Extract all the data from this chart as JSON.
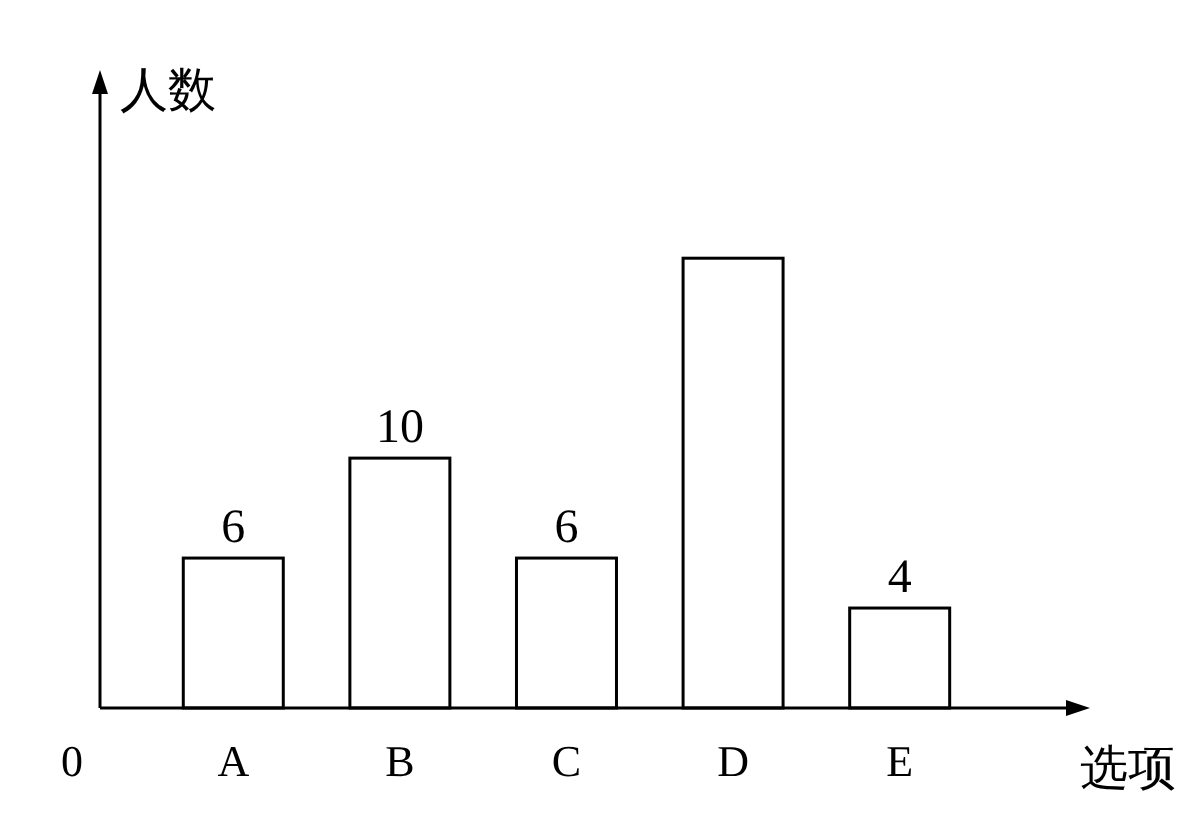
{
  "chart_data": {
    "type": "bar",
    "xlabel": "选项",
    "ylabel": "人数",
    "categories": [
      "A",
      "B",
      "C",
      "D",
      "E"
    ],
    "values": [
      6,
      10,
      6,
      18,
      4
    ],
    "value_labels": [
      "6",
      "10",
      "6",
      null,
      "4"
    ],
    "color": "#ffffff",
    "annotations": [
      "0"
    ]
  }
}
